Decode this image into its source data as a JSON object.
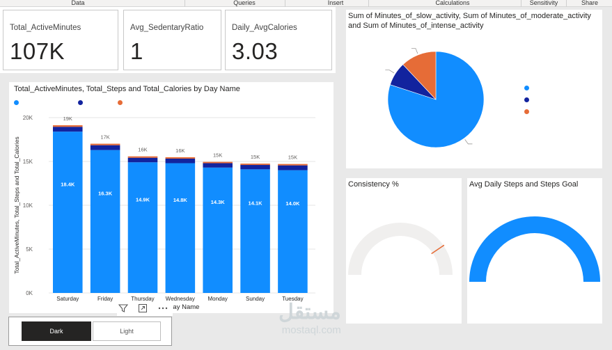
{
  "ribbon": {
    "groups": [
      {
        "label": "Data"
      },
      {
        "label": "Queries"
      },
      {
        "label": "Insert"
      },
      {
        "label": "Calculations"
      },
      {
        "label": "Sensitivity"
      },
      {
        "label": "Share"
      }
    ]
  },
  "kpis": [
    {
      "label": "Total_ActiveMinutes",
      "value": "107K"
    },
    {
      "label": "Avg_SedentaryRatio",
      "value": "1"
    },
    {
      "label": "Daily_AvgCalories",
      "value": "3.03"
    }
  ],
  "bar_visual": {
    "title": "Total_ActiveMinutes, Total_Steps and Total_Calories by Day Name",
    "legend_colors": [
      "#118DFF",
      "#12239E",
      "#E66C37"
    ]
  },
  "pie_visual": {
    "title_line1": "Sum of Minutes_of_slow_activity, Sum of Minutes_of_moderate_activity",
    "title_line2": "and Sum of Minutes_of_intense_activity",
    "legend_colors": [
      "#118DFF",
      "#12239E",
      "#E66C37"
    ]
  },
  "gauge1": {
    "title": "Consistency %"
  },
  "gauge2": {
    "title": "Avg Daily Steps and Steps Goal"
  },
  "toolbar": {
    "filter_icon": "filter-icon",
    "focus_icon": "focus-mode-icon",
    "more_icon": "more-options-icon"
  },
  "slicer": {
    "dark_label": "Dark",
    "light_label": "Light"
  },
  "watermark": {
    "arabic": "مستقل",
    "latin": "mostaql.com"
  },
  "chart_data": [
    {
      "type": "bar",
      "stacked": true,
      "title": "Total_ActiveMinutes, Total_Steps and Total_Calories by Day Name",
      "xlabel": "Day Name",
      "ylabel": "Total_ActiveMinutes, Total_Steps and Total_Calories",
      "ylim": [
        0,
        20000
      ],
      "yticks": [
        "0K",
        "5K",
        "10K",
        "15K",
        "20K"
      ],
      "ytick_values": [
        0,
        5000,
        10000,
        15000,
        20000
      ],
      "grid": true,
      "categories": [
        "Saturday",
        "Friday",
        "Thursday",
        "Wednesday",
        "Monday",
        "Sunday",
        "Tuesday"
      ],
      "series": [
        {
          "color": "#118DFF",
          "values": [
            18400,
            16300,
            14900,
            14800,
            14300,
            14100,
            14000
          ],
          "labels": [
            "18.4K",
            "16.3K",
            "14.9K",
            "14.8K",
            "14.3K",
            "14.1K",
            "14.0K"
          ]
        },
        {
          "color": "#12239E",
          "values": [
            550,
            550,
            520,
            520,
            500,
            500,
            550
          ]
        },
        {
          "color": "#E66C37",
          "values": [
            180,
            170,
            160,
            160,
            150,
            150,
            160
          ]
        }
      ],
      "total_labels": [
        "19K",
        "17K",
        "16K",
        "16K",
        "15K",
        "15K",
        "15K"
      ]
    },
    {
      "type": "pie",
      "title": "Sum of Minutes_of_slow_activity, Sum of Minutes_of_moderate_activity and Sum of Minutes_of_intense_activity",
      "slices": [
        {
          "color": "#118DFF",
          "value": 80
        },
        {
          "color": "#12239E",
          "value": 8
        },
        {
          "color": "#E66C37",
          "value": 12
        }
      ]
    },
    {
      "type": "gauge",
      "title": "Consistency %",
      "fill": 0,
      "target_fraction": 0.81,
      "colors": {
        "track": "#F0EFEE",
        "fill": "#118DFF",
        "target": "#E66C37"
      }
    },
    {
      "type": "gauge",
      "title": "Avg Daily Steps and Steps Goal",
      "fill": 1.0,
      "colors": {
        "track": "#F0EFEE",
        "fill": "#118DFF"
      }
    }
  ]
}
